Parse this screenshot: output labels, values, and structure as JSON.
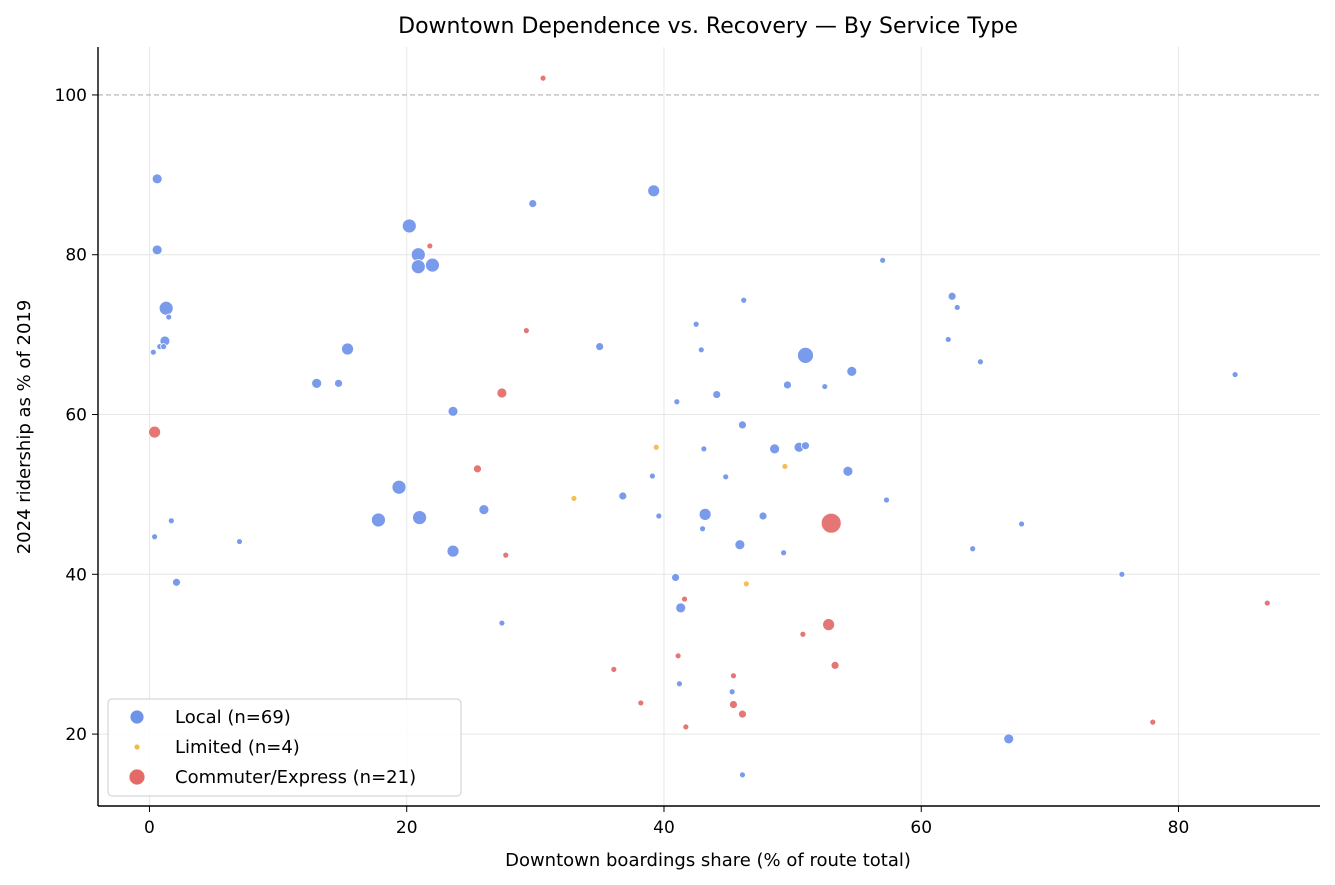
{
  "chart_data": {
    "type": "scatter",
    "title": "Downtown Dependence vs. Recovery — By Service Type",
    "xlabel": "Downtown boardings share (% of route total)",
    "ylabel": "2024 ridership as % of 2019",
    "xlim": [
      -4,
      91
    ],
    "ylim": [
      11,
      106
    ],
    "xticks": [
      0,
      20,
      40,
      60,
      80
    ],
    "yticks": [
      20,
      40,
      60,
      80,
      100
    ],
    "grid": true,
    "reference_line": {
      "y": 100,
      "style": "dashed",
      "color": "#b0b0b0"
    },
    "legend_position": "lower-left",
    "series": [
      {
        "name": "Local (n=69)",
        "color": "#6f93ea",
        "points": [
          [
            0.6,
            89.5,
            5
          ],
          [
            0.6,
            80.6,
            5
          ],
          [
            1.3,
            73.3,
            7
          ],
          [
            1.5,
            72.2,
            3
          ],
          [
            1.2,
            69.2,
            5
          ],
          [
            0.8,
            68.5,
            3
          ],
          [
            1.1,
            68.5,
            3
          ],
          [
            0.3,
            67.8,
            3
          ],
          [
            0.4,
            44.7,
            3
          ],
          [
            1.7,
            46.7,
            3
          ],
          [
            2.1,
            39.0,
            4
          ],
          [
            7.0,
            44.1,
            3
          ],
          [
            13.0,
            63.9,
            5
          ],
          [
            14.7,
            63.9,
            4
          ],
          [
            15.4,
            68.2,
            6
          ],
          [
            17.8,
            46.8,
            7
          ],
          [
            19.4,
            50.9,
            7
          ],
          [
            20.2,
            83.6,
            7
          ],
          [
            20.9,
            80.0,
            7
          ],
          [
            20.9,
            78.5,
            7
          ],
          [
            22.0,
            78.7,
            7
          ],
          [
            21.0,
            47.1,
            7
          ],
          [
            23.6,
            60.4,
            5
          ],
          [
            23.6,
            42.9,
            6
          ],
          [
            26.0,
            48.1,
            5
          ],
          [
            27.4,
            33.9,
            3
          ],
          [
            29.8,
            86.4,
            4
          ],
          [
            35.0,
            68.5,
            4
          ],
          [
            36.8,
            49.8,
            4
          ],
          [
            39.2,
            88.0,
            6
          ],
          [
            39.1,
            52.3,
            3
          ],
          [
            39.6,
            47.3,
            3
          ],
          [
            40.9,
            39.6,
            4
          ],
          [
            41.0,
            61.6,
            3
          ],
          [
            41.2,
            26.3,
            3
          ],
          [
            41.3,
            35.8,
            5
          ],
          [
            42.5,
            71.3,
            3
          ],
          [
            42.9,
            68.1,
            3
          ],
          [
            43.1,
            55.7,
            3
          ],
          [
            43.0,
            45.7,
            3
          ],
          [
            43.2,
            47.5,
            6
          ],
          [
            44.1,
            62.5,
            4
          ],
          [
            44.8,
            52.2,
            3
          ],
          [
            45.3,
            25.3,
            3
          ],
          [
            45.9,
            43.7,
            5
          ],
          [
            46.1,
            58.7,
            4
          ],
          [
            46.2,
            74.3,
            3
          ],
          [
            46.1,
            14.9,
            3
          ],
          [
            47.7,
            47.3,
            4
          ],
          [
            48.6,
            55.7,
            5
          ],
          [
            49.3,
            42.7,
            3
          ],
          [
            49.6,
            63.7,
            4
          ],
          [
            50.5,
            55.9,
            5
          ],
          [
            51.0,
            67.4,
            8
          ],
          [
            52.5,
            63.5,
            3
          ],
          [
            54.3,
            52.9,
            5
          ],
          [
            54.6,
            65.4,
            5
          ],
          [
            51.0,
            56.1,
            4
          ],
          [
            57.0,
            79.3,
            3
          ],
          [
            57.3,
            49.3,
            3
          ],
          [
            62.1,
            69.4,
            3
          ],
          [
            62.4,
            74.8,
            4
          ],
          [
            62.8,
            73.4,
            3
          ],
          [
            64.0,
            43.2,
            3
          ],
          [
            64.6,
            66.6,
            3
          ],
          [
            66.8,
            19.4,
            5
          ],
          [
            67.8,
            46.3,
            3
          ],
          [
            75.6,
            40.0,
            3
          ],
          [
            84.4,
            65.0,
            3
          ]
        ]
      },
      {
        "name": "Limited (n=4)",
        "color": "#f5b84a",
        "points": [
          [
            33.0,
            49.5,
            3
          ],
          [
            39.4,
            55.9,
            3
          ],
          [
            46.4,
            38.8,
            3
          ],
          [
            49.4,
            53.5,
            3
          ]
        ]
      },
      {
        "name": "Commuter/Express (n=21)",
        "color": "#e36a67",
        "points": [
          [
            0.4,
            57.8,
            6
          ],
          [
            21.8,
            81.1,
            3
          ],
          [
            25.5,
            53.2,
            4
          ],
          [
            27.4,
            62.7,
            5
          ],
          [
            27.7,
            42.4,
            3
          ],
          [
            29.3,
            70.5,
            3
          ],
          [
            30.6,
            102.1,
            3
          ],
          [
            36.1,
            28.1,
            3
          ],
          [
            38.2,
            23.9,
            3
          ],
          [
            41.1,
            29.8,
            3
          ],
          [
            41.6,
            36.9,
            3
          ],
          [
            41.7,
            20.9,
            3
          ],
          [
            45.4,
            27.3,
            3
          ],
          [
            45.4,
            23.7,
            4
          ],
          [
            46.1,
            22.5,
            4
          ],
          [
            50.8,
            32.5,
            3
          ],
          [
            52.8,
            33.7,
            6
          ],
          [
            53.0,
            46.4,
            10
          ],
          [
            53.3,
            28.6,
            4
          ],
          [
            78.0,
            21.5,
            3
          ],
          [
            86.9,
            36.4,
            3
          ]
        ]
      }
    ]
  }
}
